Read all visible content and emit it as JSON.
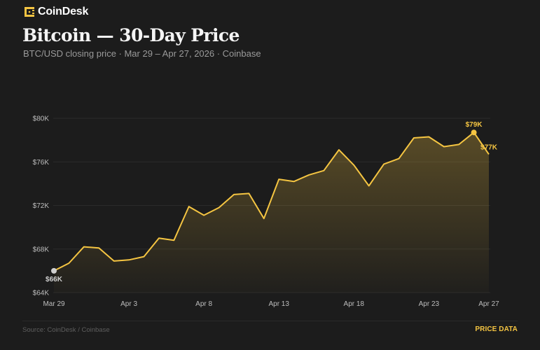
{
  "brand": {
    "name": "CoinDesk",
    "logo_icon": "coindesk-logo-icon",
    "accent": "#f5c542"
  },
  "header": {
    "title": "Bitcoin — 30-Day Price",
    "subtitle": "BTC/USD closing price · Mar 29 – Apr 27, 2026 · Coinbase"
  },
  "colors": {
    "background": "#1c1c1c",
    "line": "#f5c542",
    "start_marker": "#cfcfcf",
    "grid": "#2b2b2b"
  },
  "chart_data": {
    "type": "area",
    "title": "Bitcoin — 30-Day Price",
    "subtitle": "BTC/USD closing price · Mar 29 – Apr 27, 2026 · Coinbase",
    "xlabel": "",
    "ylabel": "",
    "unit": "USD (thousands)",
    "ylim": [
      64,
      80
    ],
    "grid": true,
    "legend": null,
    "yticks": [
      {
        "value": 80,
        "label": "$80K"
      },
      {
        "value": 76,
        "label": "$76K"
      },
      {
        "value": 72,
        "label": "$72K"
      },
      {
        "value": 68,
        "label": "$68K"
      },
      {
        "value": 64,
        "label": "$64K"
      }
    ],
    "xticks": [
      {
        "index": 0,
        "label": "Mar 29"
      },
      {
        "index": 5,
        "label": "Apr 3"
      },
      {
        "index": 10,
        "label": "Apr 8"
      },
      {
        "index": 15,
        "label": "Apr 13"
      },
      {
        "index": 20,
        "label": "Apr 18"
      },
      {
        "index": 25,
        "label": "Apr 23"
      },
      {
        "index": 29,
        "label": "Apr 27"
      }
    ],
    "x": [
      "Mar 29",
      "Mar 30",
      "Mar 31",
      "Apr 1",
      "Apr 2",
      "Apr 3",
      "Apr 4",
      "Apr 5",
      "Apr 6",
      "Apr 7",
      "Apr 8",
      "Apr 9",
      "Apr 10",
      "Apr 11",
      "Apr 12",
      "Apr 13",
      "Apr 14",
      "Apr 15",
      "Apr 16",
      "Apr 17",
      "Apr 18",
      "Apr 19",
      "Apr 20",
      "Apr 21",
      "Apr 22",
      "Apr 23",
      "Apr 24",
      "Apr 25",
      "Apr 26",
      "Apr 27"
    ],
    "series": [
      {
        "name": "BTC/USD close ($K)",
        "values": [
          66.0,
          66.7,
          68.2,
          68.1,
          66.9,
          67.0,
          67.3,
          69.0,
          68.8,
          71.9,
          71.1,
          71.8,
          73.0,
          73.1,
          70.8,
          74.4,
          74.2,
          74.8,
          75.2,
          77.1,
          75.7,
          73.8,
          75.8,
          76.3,
          78.2,
          78.3,
          77.4,
          77.6,
          78.7,
          76.7
        ]
      }
    ],
    "annotations": [
      {
        "index": 0,
        "label": "$66K",
        "style": "start"
      },
      {
        "index": 28,
        "label": "$79K",
        "style": "peak"
      },
      {
        "index": 29,
        "label": "$77K",
        "style": "last"
      }
    ]
  },
  "footer": {
    "source": "Source: CoinDesk / Coinbase",
    "tag": "PRICE DATA"
  }
}
